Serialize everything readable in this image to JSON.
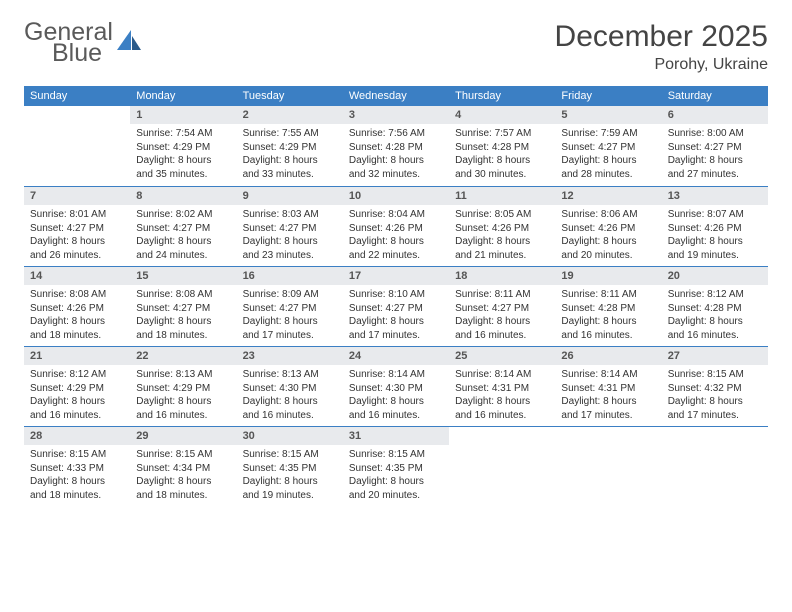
{
  "logo": {
    "line1": "General",
    "line2": "Blue"
  },
  "title": "December 2025",
  "location": "Porohy, Ukraine",
  "colors": {
    "header_bg": "#3b7fc4",
    "header_fg": "#ffffff",
    "daynum_bg": "#e8eaed",
    "daynum_fg": "#555555",
    "rule": "#3b7fc4",
    "text": "#333333",
    "title": "#444444"
  },
  "weekdays": [
    "Sunday",
    "Monday",
    "Tuesday",
    "Wednesday",
    "Thursday",
    "Friday",
    "Saturday"
  ],
  "weeks": [
    [
      {
        "n": "",
        "sr": "",
        "ss": "",
        "dl": ""
      },
      {
        "n": "1",
        "sr": "7:54 AM",
        "ss": "4:29 PM",
        "dl": "8 hours and 35 minutes."
      },
      {
        "n": "2",
        "sr": "7:55 AM",
        "ss": "4:29 PM",
        "dl": "8 hours and 33 minutes."
      },
      {
        "n": "3",
        "sr": "7:56 AM",
        "ss": "4:28 PM",
        "dl": "8 hours and 32 minutes."
      },
      {
        "n": "4",
        "sr": "7:57 AM",
        "ss": "4:28 PM",
        "dl": "8 hours and 30 minutes."
      },
      {
        "n": "5",
        "sr": "7:59 AM",
        "ss": "4:27 PM",
        "dl": "8 hours and 28 minutes."
      },
      {
        "n": "6",
        "sr": "8:00 AM",
        "ss": "4:27 PM",
        "dl": "8 hours and 27 minutes."
      }
    ],
    [
      {
        "n": "7",
        "sr": "8:01 AM",
        "ss": "4:27 PM",
        "dl": "8 hours and 26 minutes."
      },
      {
        "n": "8",
        "sr": "8:02 AM",
        "ss": "4:27 PM",
        "dl": "8 hours and 24 minutes."
      },
      {
        "n": "9",
        "sr": "8:03 AM",
        "ss": "4:27 PM",
        "dl": "8 hours and 23 minutes."
      },
      {
        "n": "10",
        "sr": "8:04 AM",
        "ss": "4:26 PM",
        "dl": "8 hours and 22 minutes."
      },
      {
        "n": "11",
        "sr": "8:05 AM",
        "ss": "4:26 PM",
        "dl": "8 hours and 21 minutes."
      },
      {
        "n": "12",
        "sr": "8:06 AM",
        "ss": "4:26 PM",
        "dl": "8 hours and 20 minutes."
      },
      {
        "n": "13",
        "sr": "8:07 AM",
        "ss": "4:26 PM",
        "dl": "8 hours and 19 minutes."
      }
    ],
    [
      {
        "n": "14",
        "sr": "8:08 AM",
        "ss": "4:26 PM",
        "dl": "8 hours and 18 minutes."
      },
      {
        "n": "15",
        "sr": "8:08 AM",
        "ss": "4:27 PM",
        "dl": "8 hours and 18 minutes."
      },
      {
        "n": "16",
        "sr": "8:09 AM",
        "ss": "4:27 PM",
        "dl": "8 hours and 17 minutes."
      },
      {
        "n": "17",
        "sr": "8:10 AM",
        "ss": "4:27 PM",
        "dl": "8 hours and 17 minutes."
      },
      {
        "n": "18",
        "sr": "8:11 AM",
        "ss": "4:27 PM",
        "dl": "8 hours and 16 minutes."
      },
      {
        "n": "19",
        "sr": "8:11 AM",
        "ss": "4:28 PM",
        "dl": "8 hours and 16 minutes."
      },
      {
        "n": "20",
        "sr": "8:12 AM",
        "ss": "4:28 PM",
        "dl": "8 hours and 16 minutes."
      }
    ],
    [
      {
        "n": "21",
        "sr": "8:12 AM",
        "ss": "4:29 PM",
        "dl": "8 hours and 16 minutes."
      },
      {
        "n": "22",
        "sr": "8:13 AM",
        "ss": "4:29 PM",
        "dl": "8 hours and 16 minutes."
      },
      {
        "n": "23",
        "sr": "8:13 AM",
        "ss": "4:30 PM",
        "dl": "8 hours and 16 minutes."
      },
      {
        "n": "24",
        "sr": "8:14 AM",
        "ss": "4:30 PM",
        "dl": "8 hours and 16 minutes."
      },
      {
        "n": "25",
        "sr": "8:14 AM",
        "ss": "4:31 PM",
        "dl": "8 hours and 16 minutes."
      },
      {
        "n": "26",
        "sr": "8:14 AM",
        "ss": "4:31 PM",
        "dl": "8 hours and 17 minutes."
      },
      {
        "n": "27",
        "sr": "8:15 AM",
        "ss": "4:32 PM",
        "dl": "8 hours and 17 minutes."
      }
    ],
    [
      {
        "n": "28",
        "sr": "8:15 AM",
        "ss": "4:33 PM",
        "dl": "8 hours and 18 minutes."
      },
      {
        "n": "29",
        "sr": "8:15 AM",
        "ss": "4:34 PM",
        "dl": "8 hours and 18 minutes."
      },
      {
        "n": "30",
        "sr": "8:15 AM",
        "ss": "4:35 PM",
        "dl": "8 hours and 19 minutes."
      },
      {
        "n": "31",
        "sr": "8:15 AM",
        "ss": "4:35 PM",
        "dl": "8 hours and 20 minutes."
      },
      {
        "n": "",
        "sr": "",
        "ss": "",
        "dl": ""
      },
      {
        "n": "",
        "sr": "",
        "ss": "",
        "dl": ""
      },
      {
        "n": "",
        "sr": "",
        "ss": "",
        "dl": ""
      }
    ]
  ],
  "labels": {
    "sunrise": "Sunrise:",
    "sunset": "Sunset:",
    "daylight": "Daylight:"
  }
}
